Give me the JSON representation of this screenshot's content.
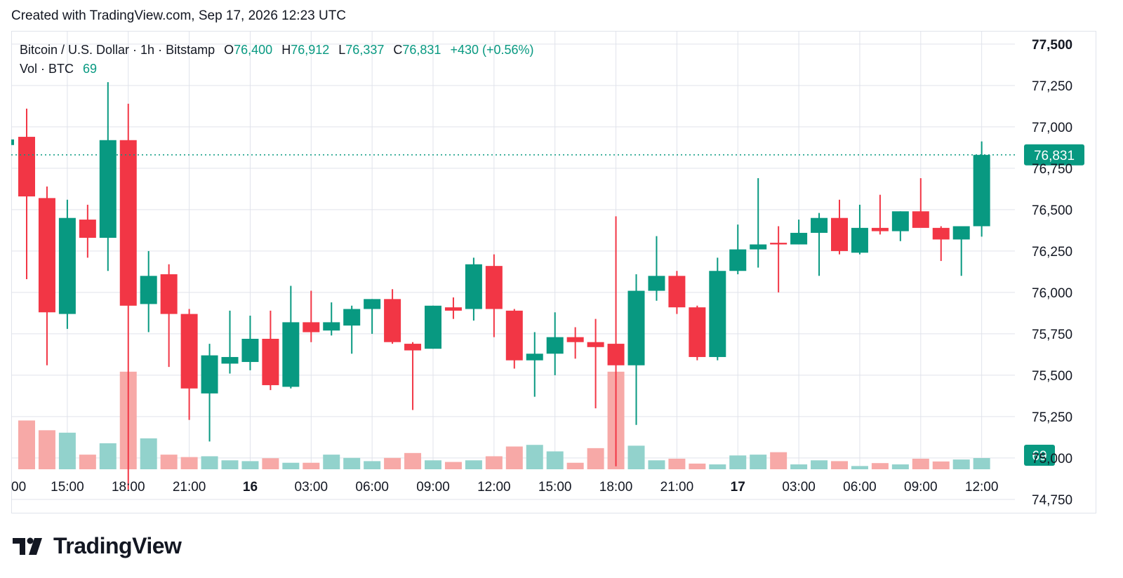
{
  "header": {
    "created_text": "Created with TradingView.com, Sep 17, 2026 12:23 UTC"
  },
  "legend": {
    "symbol": "Bitcoin / U.S. Dollar · 1h · Bitstamp",
    "open_label": "O",
    "open": "76,400",
    "high_label": "H",
    "high": "76,912",
    "low_label": "L",
    "low": "76,337",
    "close_label": "C",
    "close": "76,831",
    "change": "+430 (+0.56%)",
    "volume_label": "Vol · BTC",
    "volume": "69"
  },
  "colors": {
    "up": "#089981",
    "down": "#f23645",
    "up_vol": "#92d2cc",
    "down_vol": "#f7a9a7",
    "grid": "#e0e3eb",
    "text": "#131722"
  },
  "logo": {
    "text": "TradingView",
    "icon": "tradingview-logo-icon"
  },
  "chart_data": {
    "type": "candlestick",
    "timeframe": "1h",
    "y_ticks": [
      77500,
      77250,
      77000,
      76750,
      76500,
      76250,
      76000,
      75750,
      75500,
      75250,
      75000,
      74750
    ],
    "y_tick_labels": [
      "77,500",
      "77,250",
      "77,000",
      "76,750",
      "76,500",
      "76,250",
      "76,000",
      "75,750",
      "75,500",
      "75,250",
      "75,000",
      "74,750"
    ],
    "ylim": [
      74665,
      77580
    ],
    "x_tick_labels": [
      "00",
      "15:00",
      "18:00",
      "21:00",
      "16",
      "03:00",
      "06:00",
      "09:00",
      "12:00",
      "15:00",
      "18:00",
      "21:00",
      "17",
      "03:00",
      "06:00",
      "09:00",
      "12:00"
    ],
    "x_tick_bold": [
      false,
      false,
      false,
      false,
      true,
      false,
      false,
      false,
      false,
      false,
      false,
      false,
      true,
      false,
      false,
      false,
      false
    ],
    "last_price_label": "76,831",
    "last_price": 76831,
    "volume_last_label": "69",
    "candles": [
      {
        "o": 76940,
        "h": 77110,
        "l": 76080,
        "c": 76580,
        "v": 300
      },
      {
        "o": 76570,
        "h": 76640,
        "l": 75560,
        "c": 75880,
        "v": 240
      },
      {
        "o": 75870,
        "h": 76560,
        "l": 75780,
        "c": 76450,
        "v": 225
      },
      {
        "o": 76440,
        "h": 76530,
        "l": 76210,
        "c": 76330,
        "v": 90
      },
      {
        "o": 76330,
        "h": 77270,
        "l": 76130,
        "c": 76920,
        "v": 160
      },
      {
        "o": 76920,
        "h": 77140,
        "l": 74810,
        "c": 75920,
        "v": 600
      },
      {
        "o": 75930,
        "h": 76250,
        "l": 75760,
        "c": 76100,
        "v": 190
      },
      {
        "o": 76110,
        "h": 76170,
        "l": 75550,
        "c": 75870,
        "v": 90
      },
      {
        "o": 75870,
        "h": 75900,
        "l": 75230,
        "c": 75420,
        "v": 75
      },
      {
        "o": 75390,
        "h": 75690,
        "l": 75100,
        "c": 75620,
        "v": 80
      },
      {
        "o": 75570,
        "h": 75890,
        "l": 75510,
        "c": 75610,
        "v": 55
      },
      {
        "o": 75580,
        "h": 75860,
        "l": 75530,
        "c": 75720,
        "v": 50
      },
      {
        "o": 75720,
        "h": 75890,
        "l": 75410,
        "c": 75440,
        "v": 68
      },
      {
        "o": 75430,
        "h": 76040,
        "l": 75420,
        "c": 75820,
        "v": 40
      },
      {
        "o": 75820,
        "h": 76010,
        "l": 75700,
        "c": 75760,
        "v": 40
      },
      {
        "o": 75770,
        "h": 75940,
        "l": 75740,
        "c": 75820,
        "v": 90
      },
      {
        "o": 75800,
        "h": 75920,
        "l": 75630,
        "c": 75900,
        "v": 70
      },
      {
        "o": 75900,
        "h": 75960,
        "l": 75750,
        "c": 75960,
        "v": 50
      },
      {
        "o": 75960,
        "h": 76020,
        "l": 75690,
        "c": 75700,
        "v": 70
      },
      {
        "o": 75690,
        "h": 75700,
        "l": 75290,
        "c": 75650,
        "v": 100
      },
      {
        "o": 75660,
        "h": 75920,
        "l": 75660,
        "c": 75920,
        "v": 55
      },
      {
        "o": 75910,
        "h": 75970,
        "l": 75840,
        "c": 75890,
        "v": 45
      },
      {
        "o": 75900,
        "h": 76210,
        "l": 75830,
        "c": 76170,
        "v": 55
      },
      {
        "o": 76160,
        "h": 76230,
        "l": 75730,
        "c": 75900,
        "v": 80
      },
      {
        "o": 75890,
        "h": 75900,
        "l": 75540,
        "c": 75590,
        "v": 140
      },
      {
        "o": 75590,
        "h": 75760,
        "l": 75370,
        "c": 75630,
        "v": 150
      },
      {
        "o": 75630,
        "h": 75880,
        "l": 75500,
        "c": 75730,
        "v": 110
      },
      {
        "o": 75730,
        "h": 75790,
        "l": 75600,
        "c": 75700,
        "v": 40
      },
      {
        "o": 75700,
        "h": 75840,
        "l": 75300,
        "c": 75670,
        "v": 130
      },
      {
        "o": 75690,
        "h": 76460,
        "l": 74950,
        "c": 75560,
        "v": 600
      },
      {
        "o": 75560,
        "h": 76110,
        "l": 75200,
        "c": 76010,
        "v": 145
      },
      {
        "o": 76010,
        "h": 76340,
        "l": 75950,
        "c": 76100,
        "v": 55
      },
      {
        "o": 76100,
        "h": 76130,
        "l": 75870,
        "c": 75910,
        "v": 65
      },
      {
        "o": 75910,
        "h": 75920,
        "l": 75590,
        "c": 75610,
        "v": 35
      },
      {
        "o": 75610,
        "h": 76210,
        "l": 75590,
        "c": 76130,
        "v": 30
      },
      {
        "o": 76130,
        "h": 76410,
        "l": 76110,
        "c": 76260,
        "v": 85
      },
      {
        "o": 76260,
        "h": 76690,
        "l": 76150,
        "c": 76290,
        "v": 90
      },
      {
        "o": 76300,
        "h": 76400,
        "l": 76000,
        "c": 76290,
        "v": 105
      },
      {
        "o": 76290,
        "h": 76440,
        "l": 76290,
        "c": 76360,
        "v": 30
      },
      {
        "o": 76360,
        "h": 76480,
        "l": 76100,
        "c": 76450,
        "v": 55
      },
      {
        "o": 76450,
        "h": 76560,
        "l": 76230,
        "c": 76250,
        "v": 50
      },
      {
        "o": 76240,
        "h": 76530,
        "l": 76230,
        "c": 76390,
        "v": 20
      },
      {
        "o": 76390,
        "h": 76590,
        "l": 76350,
        "c": 76370,
        "v": 38
      },
      {
        "o": 76370,
        "h": 76490,
        "l": 76310,
        "c": 76490,
        "v": 30
      },
      {
        "o": 76490,
        "h": 76690,
        "l": 76400,
        "c": 76390,
        "v": 65
      },
      {
        "o": 76390,
        "h": 76400,
        "l": 76190,
        "c": 76320,
        "v": 48
      },
      {
        "o": 76320,
        "h": 76400,
        "l": 76100,
        "c": 76400,
        "v": 60
      },
      {
        "o": 76400,
        "h": 76912,
        "l": 76337,
        "c": 76831,
        "v": 69
      }
    ],
    "volume_max": 690,
    "grid": true
  }
}
